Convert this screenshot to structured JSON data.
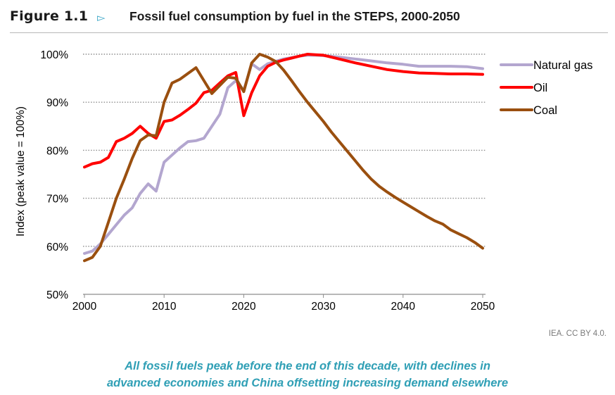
{
  "header": {
    "figure_label": "Figure 1.1",
    "arrow_icon": "triangle-right-outline",
    "title": "Fossil fuel consumption by fuel in the STEPS, 2000-2050"
  },
  "chart_data": {
    "type": "line",
    "title": "Fossil fuel consumption by fuel in the STEPS, 2000-2050",
    "xlabel": "",
    "ylabel": "Index (peak value = 100%)",
    "xlim": [
      2000,
      2050
    ],
    "ylim": [
      50,
      100
    ],
    "x_ticks": [
      "2000",
      "2010",
      "2020",
      "2030",
      "2040",
      "2050"
    ],
    "y_ticks": [
      "50%",
      "60%",
      "70%",
      "80%",
      "90%",
      "100%"
    ],
    "y_tick_values": [
      50,
      60,
      70,
      80,
      90,
      100
    ],
    "x_tick_values": [
      2000,
      2010,
      2020,
      2030,
      2040,
      2050
    ],
    "grid": "horizontal dotted",
    "legend_position": "right",
    "series": [
      {
        "name": "Natural gas",
        "color": "#b3a6cf",
        "points": [
          [
            2000,
            58.5
          ],
          [
            2001,
            59
          ],
          [
            2002,
            60.5
          ],
          [
            2003,
            62.5
          ],
          [
            2004,
            64.5
          ],
          [
            2005,
            66.5
          ],
          [
            2006,
            68
          ],
          [
            2007,
            71
          ],
          [
            2008,
            73
          ],
          [
            2009,
            71.5
          ],
          [
            2010,
            77.5
          ],
          [
            2011,
            79
          ],
          [
            2012,
            80.5
          ],
          [
            2013,
            81.8
          ],
          [
            2014,
            82
          ],
          [
            2015,
            82.5
          ],
          [
            2016,
            85
          ],
          [
            2017,
            87.5
          ],
          [
            2018,
            93
          ],
          [
            2019,
            94.5
          ],
          [
            2020,
            92.5
          ],
          [
            2021,
            98
          ],
          [
            2022,
            96.8
          ],
          [
            2023,
            98
          ],
          [
            2024,
            98.5
          ],
          [
            2025,
            99
          ],
          [
            2026,
            99.3
          ],
          [
            2027,
            99.6
          ],
          [
            2028,
            99.8
          ],
          [
            2029,
            99.8
          ],
          [
            2030,
            99.7
          ],
          [
            2032,
            99.4
          ],
          [
            2034,
            99
          ],
          [
            2036,
            98.6
          ],
          [
            2038,
            98.2
          ],
          [
            2040,
            97.9
          ],
          [
            2042,
            97.5
          ],
          [
            2044,
            97.5
          ],
          [
            2046,
            97.5
          ],
          [
            2048,
            97.4
          ],
          [
            2050,
            97
          ]
        ]
      },
      {
        "name": "Oil",
        "color": "#ff0000",
        "points": [
          [
            2000,
            76.5
          ],
          [
            2001,
            77.2
          ],
          [
            2002,
            77.5
          ],
          [
            2003,
            78.5
          ],
          [
            2004,
            81.8
          ],
          [
            2005,
            82.5
          ],
          [
            2006,
            83.5
          ],
          [
            2007,
            85
          ],
          [
            2008,
            83.5
          ],
          [
            2009,
            82.5
          ],
          [
            2010,
            86
          ],
          [
            2011,
            86.3
          ],
          [
            2012,
            87.3
          ],
          [
            2013,
            88.5
          ],
          [
            2014,
            89.8
          ],
          [
            2015,
            92
          ],
          [
            2016,
            92.5
          ],
          [
            2017,
            94
          ],
          [
            2018,
            95.5
          ],
          [
            2019,
            96.2
          ],
          [
            2020,
            87.2
          ],
          [
            2021,
            92
          ],
          [
            2022,
            95.5
          ],
          [
            2023,
            97.5
          ],
          [
            2024,
            98.3
          ],
          [
            2025,
            98.8
          ],
          [
            2026,
            99.2
          ],
          [
            2027,
            99.6
          ],
          [
            2028,
            100
          ],
          [
            2029,
            99.9
          ],
          [
            2030,
            99.8
          ],
          [
            2032,
            99
          ],
          [
            2034,
            98.2
          ],
          [
            2036,
            97.5
          ],
          [
            2038,
            96.8
          ],
          [
            2040,
            96.4
          ],
          [
            2042,
            96.1
          ],
          [
            2044,
            96
          ],
          [
            2046,
            95.9
          ],
          [
            2048,
            95.9
          ],
          [
            2050,
            95.8
          ]
        ]
      },
      {
        "name": "Coal",
        "color": "#9a4f0f",
        "points": [
          [
            2000,
            57
          ],
          [
            2001,
            57.7
          ],
          [
            2002,
            60
          ],
          [
            2003,
            65
          ],
          [
            2004,
            70
          ],
          [
            2005,
            74
          ],
          [
            2006,
            78.3
          ],
          [
            2007,
            82
          ],
          [
            2008,
            83.2
          ],
          [
            2009,
            83
          ],
          [
            2010,
            90
          ],
          [
            2011,
            94
          ],
          [
            2012,
            94.8
          ],
          [
            2013,
            96
          ],
          [
            2014,
            97.2
          ],
          [
            2015,
            94.5
          ],
          [
            2016,
            91.8
          ],
          [
            2017,
            93.5
          ],
          [
            2018,
            95.2
          ],
          [
            2019,
            95
          ],
          [
            2020,
            92.2
          ],
          [
            2021,
            98.2
          ],
          [
            2022,
            100
          ],
          [
            2023,
            99.4
          ],
          [
            2024,
            98.5
          ],
          [
            2025,
            96.7
          ],
          [
            2026,
            94.5
          ],
          [
            2027,
            92.2
          ],
          [
            2028,
            90
          ],
          [
            2029,
            88
          ],
          [
            2030,
            86
          ],
          [
            2031,
            83.8
          ],
          [
            2032,
            81.8
          ],
          [
            2033,
            79.8
          ],
          [
            2034,
            77.8
          ],
          [
            2035,
            75.8
          ],
          [
            2036,
            74
          ],
          [
            2037,
            72.5
          ],
          [
            2038,
            71.3
          ],
          [
            2039,
            70.2
          ],
          [
            2040,
            69.2
          ],
          [
            2041,
            68.2
          ],
          [
            2042,
            67.2
          ],
          [
            2043,
            66.2
          ],
          [
            2044,
            65.3
          ],
          [
            2045,
            64.6
          ],
          [
            2046,
            63.4
          ],
          [
            2047,
            62.6
          ],
          [
            2048,
            61.8
          ],
          [
            2049,
            60.8
          ],
          [
            2050,
            59.6
          ]
        ]
      }
    ]
  },
  "source": "IEA. CC BY 4.0.",
  "caption": {
    "line1": "All fossil fuels peak before the end of this decade, with declines in",
    "line2": "advanced economies and China offsetting increasing demand elsewhere"
  }
}
